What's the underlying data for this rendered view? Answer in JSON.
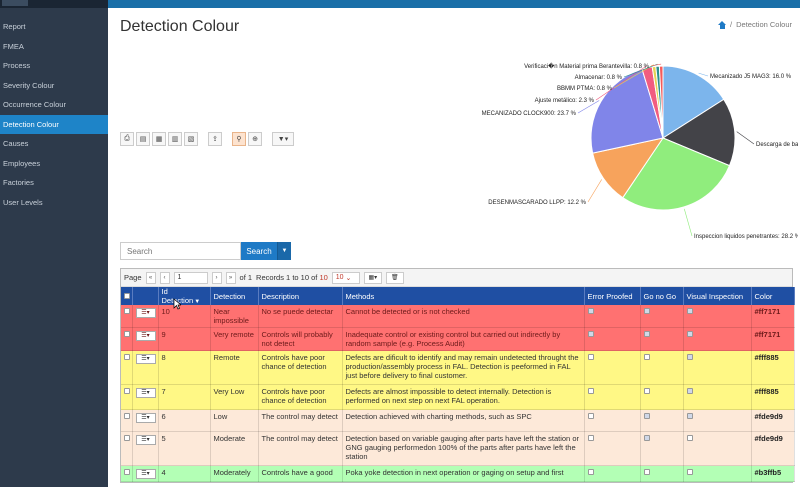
{
  "sidebar": {
    "items": [
      {
        "label": "Report"
      },
      {
        "label": "FMEA"
      },
      {
        "label": "Process"
      },
      {
        "label": "Severity Colour"
      },
      {
        "label": "Occurrence Colour"
      },
      {
        "label": "Detection Colour",
        "active": true
      },
      {
        "label": "Causes"
      },
      {
        "label": "Employees"
      },
      {
        "label": "Factories"
      },
      {
        "label": "User Levels"
      }
    ]
  },
  "header": {
    "title": "Detection Colour",
    "breadcrumb_current": "Detection Colour",
    "breadcrumb_sep": "/"
  },
  "toolbar": {
    "icons": [
      "print-icon",
      "export-excel-icon",
      "export-csv-icon",
      "export-word-icon",
      "export-pdf-icon",
      "upload-icon",
      "search-icon",
      "zoom-icon",
      "filter-icon"
    ]
  },
  "search": {
    "placeholder": "Search",
    "button_label": "Search"
  },
  "pager": {
    "page_label": "Page",
    "page_value": "1",
    "of_label": "of 1",
    "records_prefix": "Records 1 to 10 of",
    "records_total": "10",
    "page_size": "10"
  },
  "table": {
    "columns": [
      "Id Detection",
      "Detection",
      "Description",
      "Methods",
      "Error Proofed",
      "Go no Go",
      "Visual Inspection",
      "Color"
    ],
    "rows": [
      {
        "id": "10",
        "detection": "Near impossible",
        "description": "No se puede detectar",
        "methods": "Cannot be detected or is not checked",
        "color": "#ff7171",
        "style": "red",
        "error_proofed": true,
        "go_no_go": true,
        "visual": true
      },
      {
        "id": "9",
        "detection": "Very remote",
        "description": "Controls will probably not detect",
        "methods": "Inadequate control or existing control but carried out indirectly by random sample (e.g. Process Audit)",
        "color": "#ff7171",
        "style": "red",
        "error_proofed": true,
        "go_no_go": true,
        "visual": true
      },
      {
        "id": "8",
        "detection": "Remote",
        "description": "Controls have poor chance of detection",
        "methods": "Defects are dificult to identify and may remain undetected throught the production/assembly process in FAL. Detection is peeformed in FAL just before delivery to final customer.",
        "color": "#fff885",
        "style": "yellow",
        "error_proofed": false,
        "go_no_go": false,
        "visual": true
      },
      {
        "id": "7",
        "detection": "Very Low",
        "description": "Controls have poor chance of detection",
        "methods": "Defects are almost impossible to detect internally. Detection is performed on next step on next FAL operation.",
        "color": "#fff885",
        "style": "yellow",
        "error_proofed": false,
        "go_no_go": false,
        "visual": true
      },
      {
        "id": "6",
        "detection": "Low",
        "description": "The control may detect",
        "methods": "Detection achieved with charting methods, such as SPC",
        "color": "#fde9d9",
        "style": "peach",
        "error_proofed": false,
        "go_no_go": true,
        "visual": true
      },
      {
        "id": "5",
        "detection": "Moderate",
        "description": "The control may detect",
        "methods": "Detection based on variable gauging after parts have left the station or GNG gauging performedon 100% of the parts after parts have left the station",
        "color": "#fde9d9",
        "style": "peach",
        "error_proofed": false,
        "go_no_go": true,
        "visual": false
      },
      {
        "id": "4",
        "detection": "Moderately",
        "description": "Controls have a good",
        "methods": "Poka yoke detection in next operation or gaging on setup and first",
        "color": "#b3ffb5",
        "style": "green",
        "error_proofed": false,
        "go_no_go": false,
        "visual": false
      }
    ]
  },
  "chart_data": {
    "type": "pie",
    "slices": [
      {
        "label": "Mecanizado J5 MAG3: 16.0 %",
        "value": 16.0,
        "color": "#7cb5ec"
      },
      {
        "label": "Descarga de bastidor: 15.3 %",
        "value": 15.3,
        "color": "#434348"
      },
      {
        "label": "Inspeccion liquidos penetrantes: 28.2 %",
        "value": 28.2,
        "color": "#90ed7d"
      },
      {
        "label": "DESENMASCARADO LLPP: 12.2 %",
        "value": 12.2,
        "color": "#f7a35c"
      },
      {
        "label": "MECANIZADO CLOCK900: 23.7 %",
        "value": 23.7,
        "color": "#8085e9"
      },
      {
        "label": "Ajuste metálico: 2.3 %",
        "value": 2.3,
        "color": "#f15c80"
      },
      {
        "label": "BBMM PTMA: 0.8 %",
        "value": 0.8,
        "color": "#e4d354"
      },
      {
        "label": "Almacenar: 0.8 %",
        "value": 0.8,
        "color": "#2b908f"
      },
      {
        "label": "Verificaci�n Material prima Berantevilla: 0.8 %",
        "value": 0.8,
        "color": "#f45b5b"
      }
    ]
  }
}
